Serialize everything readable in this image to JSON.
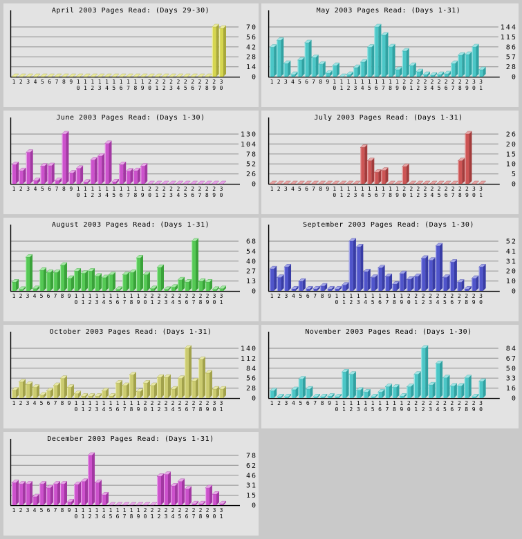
{
  "page": {
    "background": "#c9c9c9",
    "panel_background": "#e3e3e3",
    "gridline_color": "#9a9a9a",
    "axis_color": "#000000",
    "text_color": "#000000"
  },
  "chart_data": [
    {
      "type": "bar",
      "title": "April 2003 Pages Read: (Days 29-30)",
      "month": "April",
      "xlabel": "",
      "ylabel": "",
      "ylim": [
        0,
        70
      ],
      "yticks": [
        0,
        14,
        28,
        42,
        56,
        70
      ],
      "grid": "horizontal",
      "legend": "none",
      "categories": [
        1,
        2,
        3,
        4,
        5,
        6,
        7,
        8,
        9,
        10,
        11,
        12,
        13,
        14,
        15,
        16,
        17,
        18,
        19,
        20,
        21,
        22,
        23,
        24,
        25,
        26,
        27,
        28,
        29,
        30
      ],
      "values": [
        0,
        0,
        0,
        0,
        0,
        0,
        0,
        0,
        0,
        0,
        0,
        0,
        0,
        0,
        0,
        0,
        0,
        0,
        0,
        0,
        0,
        0,
        0,
        0,
        0,
        0,
        0,
        0,
        70,
        68
      ],
      "colors": {
        "front": "#d6d64f",
        "top": "#ededa4",
        "side": "#a8a83a"
      }
    },
    {
      "type": "bar",
      "title": "May 2003 Pages Read: (Days 1-31)",
      "month": "May",
      "xlabel": "",
      "ylabel": "",
      "ylim": [
        0,
        144
      ],
      "yticks": [
        0,
        28,
        57,
        86,
        115,
        144
      ],
      "grid": "horizontal",
      "legend": "none",
      "categories": [
        1,
        2,
        3,
        4,
        5,
        6,
        7,
        8,
        9,
        10,
        11,
        12,
        13,
        14,
        15,
        16,
        17,
        18,
        19,
        20,
        21,
        22,
        23,
        24,
        25,
        26,
        27,
        28,
        29,
        30,
        31
      ],
      "values": [
        85,
        105,
        38,
        6,
        48,
        98,
        55,
        36,
        10,
        32,
        0,
        6,
        26,
        42,
        85,
        144,
        120,
        86,
        20,
        74,
        32,
        14,
        6,
        4,
        6,
        8,
        38,
        62,
        64,
        86,
        20
      ],
      "colors": {
        "front": "#4cc7c7",
        "top": "#a0e5e5",
        "side": "#31a2a2"
      }
    },
    {
      "type": "bar",
      "title": "June 2003 Pages Read: (Days 1-30)",
      "month": "June",
      "xlabel": "",
      "ylabel": "",
      "ylim": [
        0,
        130
      ],
      "yticks": [
        0,
        26,
        52,
        78,
        104,
        130
      ],
      "grid": "horizontal",
      "legend": "none",
      "categories": [
        1,
        2,
        3,
        4,
        5,
        6,
        7,
        8,
        9,
        10,
        11,
        12,
        13,
        14,
        15,
        16,
        17,
        18,
        19,
        20,
        21,
        22,
        23,
        24,
        25,
        26,
        27,
        28,
        29,
        30
      ],
      "values": [
        50,
        34,
        82,
        8,
        46,
        47,
        8,
        130,
        28,
        40,
        4,
        62,
        72,
        105,
        5,
        50,
        33,
        34,
        46,
        0,
        0,
        0,
        0,
        0,
        0,
        0,
        0,
        0,
        0,
        0
      ],
      "colors": {
        "front": "#cc52cc",
        "top": "#e8a8e8",
        "side": "#a238a2"
      }
    },
    {
      "type": "bar",
      "title": "July 2003 Pages Read: (Days 1-31)",
      "month": "July",
      "xlabel": "",
      "ylabel": "",
      "ylim": [
        0,
        26
      ],
      "yticks": [
        0,
        5,
        10,
        15,
        20,
        26
      ],
      "grid": "horizontal",
      "legend": "none",
      "categories": [
        1,
        2,
        3,
        4,
        5,
        6,
        7,
        8,
        9,
        10,
        11,
        12,
        13,
        14,
        15,
        16,
        17,
        18,
        19,
        20,
        21,
        22,
        23,
        24,
        25,
        26,
        27,
        28,
        29,
        30,
        31
      ],
      "values": [
        0,
        0,
        0,
        0,
        0,
        0,
        0,
        0,
        0,
        0,
        0,
        0,
        0,
        19,
        12,
        6,
        7,
        0,
        0,
        9,
        0,
        0,
        0,
        0,
        0,
        0,
        0,
        12,
        26,
        0,
        0
      ],
      "colors": {
        "front": "#cd5555",
        "top": "#e8a8a8",
        "side": "#a23c3c"
      }
    },
    {
      "type": "bar",
      "title": "August 2003 Pages Read: (Days 1-31)",
      "month": "August",
      "xlabel": "",
      "ylabel": "",
      "ylim": [
        0,
        68
      ],
      "yticks": [
        0,
        13,
        27,
        40,
        54,
        68
      ],
      "grid": "horizontal",
      "legend": "none",
      "categories": [
        1,
        2,
        3,
        4,
        5,
        6,
        7,
        8,
        9,
        10,
        11,
        12,
        13,
        14,
        15,
        16,
        17,
        18,
        19,
        20,
        21,
        22,
        23,
        24,
        25,
        26,
        27,
        28,
        29,
        30,
        31
      ],
      "values": [
        12,
        2,
        46,
        3,
        28,
        25,
        25,
        35,
        17,
        27,
        24,
        27,
        20,
        18,
        22,
        2,
        22,
        25,
        45,
        22,
        3,
        32,
        2,
        5,
        15,
        12,
        68,
        13,
        12,
        2,
        3
      ],
      "colors": {
        "front": "#55c955",
        "top": "#a5e8a5",
        "side": "#3aa23a"
      }
    },
    {
      "type": "bar",
      "title": "September 2003 Pages Read: (Days 1-30)",
      "month": "September",
      "xlabel": "",
      "ylabel": "",
      "ylim": [
        0,
        52
      ],
      "yticks": [
        0,
        10,
        20,
        31,
        41,
        52
      ],
      "grid": "horizontal",
      "legend": "none",
      "categories": [
        1,
        2,
        3,
        4,
        5,
        6,
        7,
        8,
        9,
        10,
        11,
        12,
        13,
        14,
        15,
        16,
        17,
        18,
        19,
        20,
        21,
        22,
        23,
        24,
        25,
        26,
        27,
        28,
        29,
        30
      ],
      "values": [
        23,
        14,
        25,
        2,
        10,
        2,
        2,
        5,
        2,
        2,
        6,
        52,
        46,
        20,
        14,
        24,
        15,
        7,
        18,
        12,
        15,
        34,
        32,
        47,
        14,
        30,
        9,
        2,
        13,
        25
      ],
      "colors": {
        "front": "#5055cb",
        "top": "#a2a5e8",
        "side": "#383ca5"
      }
    },
    {
      "type": "bar",
      "title": "October 2003 Pages Read: (Days 1-31)",
      "month": "October",
      "xlabel": "",
      "ylabel": "",
      "ylim": [
        0,
        140
      ],
      "yticks": [
        0,
        28,
        56,
        84,
        112,
        140
      ],
      "grid": "horizontal",
      "legend": "none",
      "categories": [
        1,
        2,
        3,
        4,
        5,
        6,
        7,
        8,
        9,
        10,
        11,
        12,
        13,
        14,
        15,
        16,
        17,
        18,
        19,
        20,
        21,
        22,
        23,
        24,
        25,
        26,
        27,
        28,
        29,
        30,
        31
      ],
      "values": [
        22,
        45,
        38,
        30,
        8,
        20,
        35,
        55,
        30,
        12,
        5,
        5,
        5,
        20,
        5,
        42,
        35,
        65,
        18,
        42,
        35,
        58,
        58,
        25,
        55,
        140,
        48,
        108,
        70,
        25,
        25
      ],
      "colors": {
        "front": "#cbcb70",
        "top": "#e8e8a8",
        "side": "#a2a24c"
      }
    },
    {
      "type": "bar",
      "title": "November 2003 Pages Read: (Days 1-30)",
      "month": "November",
      "xlabel": "",
      "ylabel": "",
      "ylim": [
        0,
        84
      ],
      "yticks": [
        0,
        16,
        33,
        50,
        67,
        84
      ],
      "grid": "horizontal",
      "legend": "none",
      "categories": [
        1,
        2,
        3,
        4,
        5,
        6,
        7,
        8,
        9,
        10,
        11,
        12,
        13,
        14,
        15,
        16,
        17,
        18,
        19,
        20,
        21,
        22,
        23,
        24,
        25,
        26,
        27,
        28,
        29,
        30
      ],
      "values": [
        12,
        2,
        2,
        14,
        32,
        15,
        2,
        2,
        3,
        2,
        44,
        40,
        13,
        10,
        2,
        10,
        19,
        18,
        3,
        19,
        40,
        84,
        22,
        58,
        34,
        20,
        20,
        34,
        2,
        28
      ],
      "colors": {
        "front": "#4cc7c7",
        "top": "#a0e5e5",
        "side": "#31a2a2"
      }
    },
    {
      "type": "bar",
      "title": "December 2003 Pages Read: (Days 1-31)",
      "month": "December",
      "xlabel": "",
      "ylabel": "",
      "ylim": [
        0,
        78
      ],
      "yticks": [
        0,
        15,
        31,
        46,
        62,
        78
      ],
      "grid": "horizontal",
      "legend": "none",
      "categories": [
        1,
        2,
        3,
        4,
        5,
        6,
        7,
        8,
        9,
        10,
        11,
        12,
        13,
        14,
        15,
        16,
        17,
        18,
        19,
        20,
        21,
        22,
        23,
        24,
        25,
        26,
        27,
        28,
        29,
        30,
        31
      ],
      "values": [
        35,
        33,
        33,
        13,
        33,
        27,
        33,
        33,
        5,
        32,
        37,
        78,
        35,
        16,
        0,
        0,
        0,
        0,
        0,
        0,
        0,
        45,
        48,
        30,
        37,
        25,
        2,
        2,
        27,
        17,
        2
      ],
      "colors": {
        "front": "#cc52cc",
        "top": "#e8a8e8",
        "side": "#a238a2"
      }
    }
  ]
}
